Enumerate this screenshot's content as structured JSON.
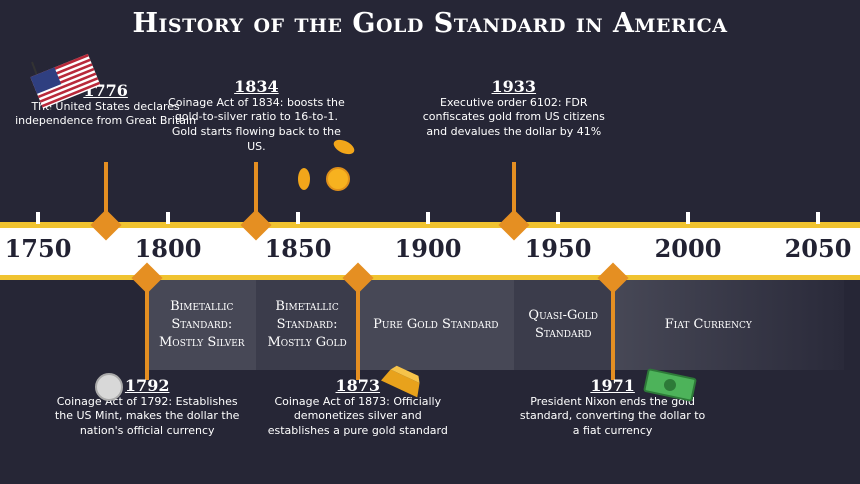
{
  "title": "History of the Gold Standard in America",
  "axis_years": [
    "1750",
    "1800",
    "1850",
    "1900",
    "1950",
    "2000",
    "2050"
  ],
  "events": [
    {
      "year": "1776",
      "text": "The United States declares independence from Great Britain",
      "position": "above",
      "icon": "us-flag-icon"
    },
    {
      "year": "1834",
      "text": "Coinage Act of 1834: boosts the gold-to-silver ratio to 16-to-1. Gold starts flowing back to the US.",
      "position": "above",
      "icon": "gold-coins-icon"
    },
    {
      "year": "1933",
      "text": "Executive order 6102: FDR confiscates gold from US citizens and devalues the dollar by 41%",
      "position": "above"
    },
    {
      "year": "1792",
      "text": "Coinage Act of 1792: Establishes the US Mint, makes the dollar the nation's official currency",
      "position": "below",
      "icon": "silver-coin-icon"
    },
    {
      "year": "1873",
      "text": "Coinage Act of 1873: Officially demonetizes silver and establishes a pure gold standard",
      "position": "below",
      "icon": "gold-bar-icon"
    },
    {
      "year": "1971",
      "text": "President Nixon ends the gold standard, converting the dollar to a fiat currency",
      "position": "below",
      "icon": "dollar-bill-icon"
    }
  ],
  "periods": [
    {
      "label": "Bimetallic Standard: Mostly Silver",
      "from": 1792,
      "to": 1834
    },
    {
      "label": "Bimetallic Standard: Mostly Gold",
      "from": 1834,
      "to": 1873
    },
    {
      "label": "Pure Gold Standard",
      "from": 1873,
      "to": 1933
    },
    {
      "label": "Quasi-Gold Standard",
      "from": 1933,
      "to": 1971
    },
    {
      "label": "Fiat Currency",
      "from": 1971,
      "to": 2060
    }
  ],
  "colors": {
    "background": "#262636",
    "accent": "#e58f22",
    "band_edge": "#f0c330",
    "period_light": "#474856",
    "period_dark": "#3b3c4b"
  }
}
